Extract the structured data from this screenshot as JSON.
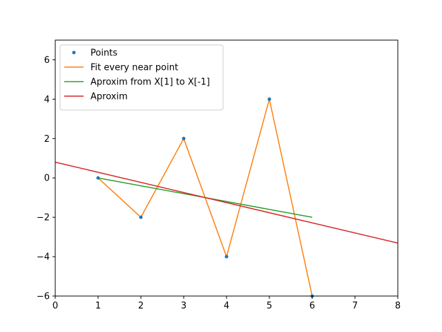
{
  "chart_data": {
    "type": "line",
    "title": "",
    "xlabel": "",
    "ylabel": "",
    "xlim": [
      0,
      8
    ],
    "ylim": [
      -6,
      7
    ],
    "xticks": [
      0,
      1,
      2,
      3,
      4,
      5,
      6,
      7,
      8
    ],
    "yticks": [
      -6,
      -4,
      -2,
      0,
      2,
      4,
      6
    ],
    "grid": false,
    "legend_position": "upper-left",
    "series": [
      {
        "name": "Points",
        "kind": "scatter",
        "color": "#1f77b4",
        "x": [
          1,
          2,
          3,
          4,
          5,
          6
        ],
        "y": [
          0,
          -2,
          2,
          -4,
          4,
          -6
        ]
      },
      {
        "name": "Fit every near point",
        "kind": "line",
        "color": "#ff7f0e",
        "x": [
          1,
          2,
          3,
          4,
          5,
          6
        ],
        "y": [
          0,
          -2,
          2,
          -4,
          4,
          -6
        ]
      },
      {
        "name": "Aproxim from X[1] to X[-1]",
        "kind": "line",
        "color": "#2ca02c",
        "x": [
          1,
          6
        ],
        "y": [
          0,
          -2
        ]
      },
      {
        "name": "Aproxim",
        "kind": "line",
        "color": "#d62728",
        "x": [
          0,
          8
        ],
        "y": [
          0.8,
          -3.31
        ]
      }
    ]
  }
}
